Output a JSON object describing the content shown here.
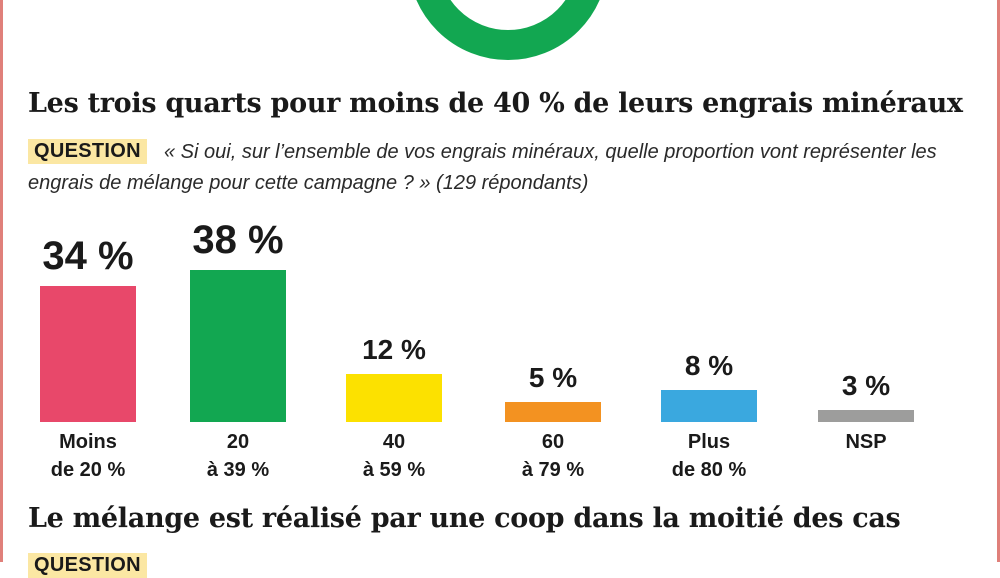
{
  "headings": {
    "chart1": "Les trois quarts pour moins de 40 % de leurs engrais minéraux",
    "chart2": "Le mélange est réalisé par une coop dans la moitié des cas"
  },
  "question": {
    "tag": "QUESTION",
    "text": "« Si oui, sur l’ensemble de vos engrais minéraux, quelle proportion vont représenter les engrais de mélange pour cette campagne ? » (129 répondants)"
  },
  "question2": {
    "tag": "QUESTION"
  },
  "colors": {
    "donut": "#12a751",
    "frame": "#e0807a",
    "question_tag_bg": "#fbe7a3"
  },
  "chart_data": {
    "type": "bar",
    "title": "Les trois quarts pour moins de 40 % de leurs engrais minéraux",
    "categories": [
      "Moins de 20 %",
      "20 à 39 %",
      "40 à 59 %",
      "60 à 79 %",
      "Plus de 80 %",
      "NSP"
    ],
    "category_lines": [
      [
        "Moins",
        "de 20 %"
      ],
      [
        "20",
        "à 39 %"
      ],
      [
        "40",
        "à 59 %"
      ],
      [
        "60",
        "à 79 %"
      ],
      [
        "Plus",
        "de 80 %"
      ],
      [
        "NSP",
        ""
      ]
    ],
    "values": [
      34,
      38,
      12,
      5,
      8,
      3
    ],
    "value_labels": [
      "34 %",
      "38 %",
      "12 %",
      "5 %",
      "8 %",
      "3 %"
    ],
    "colors": [
      "#e8486a",
      "#12a751",
      "#fce100",
      "#f39221",
      "#3aa8df",
      "#9d9d9c"
    ],
    "unit": "%",
    "ylim": [
      0,
      38
    ],
    "grid": false,
    "legend": "none"
  }
}
